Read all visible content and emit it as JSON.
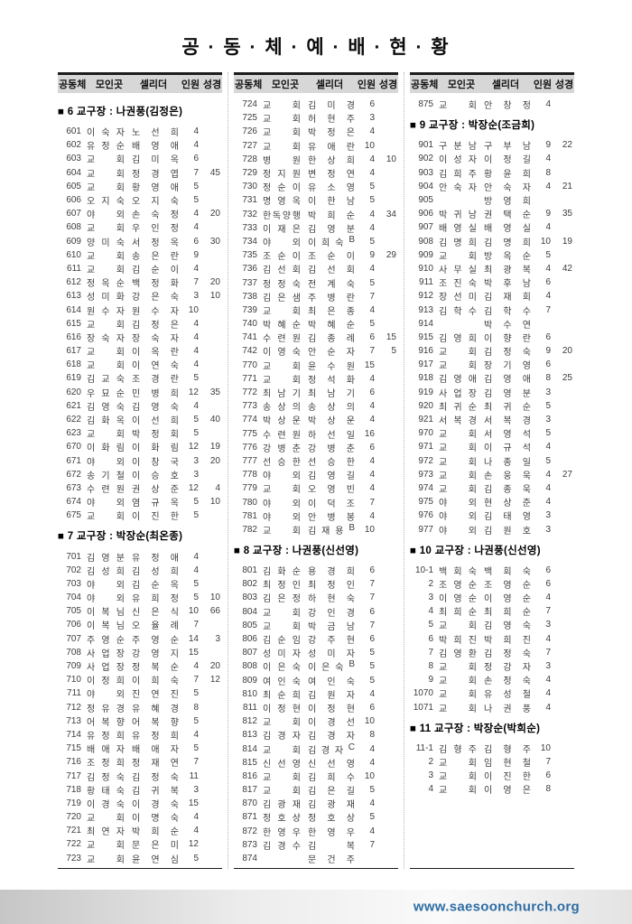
{
  "title": "공 · 동 · 체 · 예 · 배 · 현 · 황",
  "table_headers": [
    "공동체",
    "모인곳",
    "셀리더",
    "인원",
    "성경"
  ],
  "footer": {
    "url": "www.saesoonchurch.org",
    "url_color": "#2d6da3"
  },
  "columns": [
    {
      "items": [
        {
          "s": "■ 6 교구장 : 나권풍(김정은)"
        },
        [
          "601",
          "이숙자",
          "노선희",
          "4",
          ""
        ],
        [
          "602",
          "유정순",
          "배영애",
          "4",
          ""
        ],
        [
          "603",
          "교회",
          "김미옥",
          "6",
          ""
        ],
        [
          "604",
          "교회",
          "정경엽",
          "7",
          "45"
        ],
        [
          "605",
          "교회",
          "황영애",
          "5",
          ""
        ],
        [
          "606",
          "오지숙",
          "오지숙",
          "5",
          ""
        ],
        [
          "607",
          "야외",
          "손숙정",
          "4",
          "20"
        ],
        [
          "608",
          "교회",
          "우인정",
          "4",
          ""
        ],
        [
          "609",
          "양미숙",
          "서정옥",
          "6",
          "30"
        ],
        [
          "610",
          "교회",
          "송은란",
          "9",
          ""
        ],
        [
          "611",
          "교회",
          "김순이",
          "4",
          ""
        ],
        [
          "612",
          "정옥순",
          "백정화",
          "7",
          "20"
        ],
        [
          "613",
          "성미화",
          "강은숙",
          "3",
          "10"
        ],
        [
          "614",
          "원수자",
          "원수자",
          "10",
          ""
        ],
        [
          "615",
          "교회",
          "김정은",
          "4",
          ""
        ],
        [
          "616",
          "장숙자",
          "장숙자",
          "4",
          ""
        ],
        [
          "617",
          "교회",
          "이옥란",
          "4",
          ""
        ],
        [
          "618",
          "교회",
          "이연숙",
          "4",
          ""
        ],
        [
          "619",
          "김교숙",
          "조경란",
          "5",
          ""
        ],
        [
          "620",
          "우묘순",
          "민병희",
          "12",
          "35"
        ],
        [
          "621",
          "김영숙",
          "김영숙",
          "4",
          ""
        ],
        [
          "622",
          "김화옥",
          "이선희",
          "5",
          "40"
        ],
        [
          "623",
          "교회",
          "박정회",
          "5",
          ""
        ],
        [
          "670",
          "이화림",
          "이화림",
          "12",
          "19"
        ],
        [
          "671",
          "야외",
          "이창국",
          "3",
          "20"
        ],
        [
          "672",
          "송기철",
          "이승호",
          "3",
          ""
        ],
        [
          "673",
          "수련원",
          "권상준",
          "12",
          "4"
        ],
        [
          "674",
          "야외",
          "염규옥",
          "5",
          "10"
        ],
        [
          "675",
          "교회",
          "이진한",
          "5",
          ""
        ],
        {
          "s": "■ 7 교구장 : 박장순(최온종)"
        },
        [
          "701",
          "김영분",
          "유정애",
          "4",
          ""
        ],
        [
          "702",
          "김성희",
          "김성희",
          "4",
          ""
        ],
        [
          "703",
          "야외",
          "김순옥",
          "5",
          ""
        ],
        [
          "704",
          "야외",
          "유희정",
          "5",
          "10"
        ],
        [
          "705",
          "이복님",
          "신은식",
          "10",
          "66"
        ],
        [
          "706",
          "이복님",
          "오율례",
          "7",
          ""
        ],
        [
          "707",
          "주영순",
          "주영순",
          "14",
          "3"
        ],
        [
          "708",
          "사업장",
          "강영지",
          "15",
          ""
        ],
        [
          "709",
          "사업장",
          "정복순",
          "4",
          "20"
        ],
        [
          "710",
          "이정희",
          "이희숙",
          "7",
          "12"
        ],
        [
          "711",
          "야외",
          "진연진",
          "5",
          ""
        ],
        [
          "712",
          "정유경",
          "유혜경",
          "8",
          ""
        ],
        [
          "713",
          "어복향",
          "어복향",
          "5",
          ""
        ],
        [
          "714",
          "유정희",
          "유정희",
          "4",
          ""
        ],
        [
          "715",
          "배애자",
          "배애자",
          "5",
          ""
        ],
        [
          "716",
          "조정희",
          "정재연",
          "7",
          ""
        ],
        [
          "717",
          "김정숙",
          "김정숙",
          "11",
          ""
        ],
        [
          "718",
          "황태숙",
          "김귀복",
          "3",
          ""
        ],
        [
          "719",
          "이경숙",
          "이경숙",
          "15",
          ""
        ],
        [
          "720",
          "교회",
          "이명숙",
          "4",
          ""
        ],
        [
          "721",
          "최연자",
          "박희순",
          "4",
          ""
        ],
        [
          "722",
          "교회",
          "문은미",
          "12",
          ""
        ],
        [
          "723",
          "교회",
          "윤연심",
          "5",
          ""
        ]
      ]
    },
    {
      "items": [
        [
          "724",
          "교회",
          "김미경",
          "6",
          ""
        ],
        [
          "725",
          "교회",
          "허현주",
          "3",
          ""
        ],
        [
          "726",
          "교회",
          "박정은",
          "4",
          ""
        ],
        [
          "727",
          "교회",
          "유애란",
          "10",
          ""
        ],
        [
          "728",
          "병원",
          "한상희",
          "4",
          "10"
        ],
        [
          "729",
          "정지원",
          "변정연",
          "4",
          ""
        ],
        [
          "730",
          "정순이",
          "유소영",
          "5",
          ""
        ],
        [
          "731",
          "명영옥",
          "이한남",
          "5",
          ""
        ],
        [
          "732",
          "한독양행",
          "박희순",
          "4",
          "34"
        ],
        [
          "733",
          "이재은",
          "김영분",
          "4",
          ""
        ],
        [
          "734",
          "야외",
          "이희숙B",
          "5",
          ""
        ],
        [
          "735",
          "조순이",
          "조순이",
          "9",
          "29"
        ],
        [
          "736",
          "김선회",
          "김선회",
          "4",
          ""
        ],
        [
          "737",
          "정정숙",
          "전계숙",
          "5",
          ""
        ],
        [
          "738",
          "김은샘",
          "주병란",
          "7",
          ""
        ],
        [
          "739",
          "교회",
          "최은종",
          "4",
          ""
        ],
        [
          "740",
          "박혜순",
          "박혜순",
          "5",
          ""
        ],
        [
          "741",
          "수련원",
          "김종례",
          "6",
          "15"
        ],
        [
          "742",
          "이영숙",
          "안순자",
          "7",
          "5"
        ],
        [
          "770",
          "교회",
          "윤수원",
          "15",
          ""
        ],
        [
          "771",
          "교회",
          "정석화",
          "4",
          ""
        ],
        [
          "772",
          "최남기",
          "최남기",
          "6",
          ""
        ],
        [
          "773",
          "송상의",
          "송상의",
          "4",
          ""
        ],
        [
          "774",
          "박상운",
          "박상운",
          "4",
          ""
        ],
        [
          "775",
          "수련원",
          "하선일",
          "16",
          ""
        ],
        [
          "776",
          "강병춘",
          "강병춘",
          "6",
          ""
        ],
        [
          "777",
          "선승한",
          "선승한",
          "4",
          ""
        ],
        [
          "778",
          "야외",
          "김영길",
          "4",
          ""
        ],
        [
          "779",
          "교회",
          "오영빈",
          "4",
          ""
        ],
        [
          "780",
          "야외",
          "이덕조",
          "7",
          ""
        ],
        [
          "781",
          "야외",
          "안병봉",
          "4",
          ""
        ],
        [
          "782",
          "교회",
          "김재용B",
          "10",
          ""
        ],
        {
          "s": "■ 8 교구장 : 나권풍(신선영)"
        },
        [
          "801",
          "김화순",
          "용경희",
          "6",
          ""
        ],
        [
          "802",
          "최정인",
          "최정인",
          "7",
          ""
        ],
        [
          "803",
          "김은정",
          "하현숙",
          "7",
          ""
        ],
        [
          "804",
          "교회",
          "강인경",
          "6",
          ""
        ],
        [
          "805",
          "교회",
          "박금남",
          "7",
          ""
        ],
        [
          "806",
          "김순임",
          "강주현",
          "6",
          ""
        ],
        [
          "807",
          "성미자",
          "성미자",
          "5",
          ""
        ],
        [
          "808",
          "이은숙",
          "이은숙B",
          "5",
          ""
        ],
        [
          "809",
          "여인숙",
          "여인숙",
          "5",
          ""
        ],
        [
          "810",
          "최순희",
          "김원자",
          "4",
          ""
        ],
        [
          "811",
          "이정현",
          "이정현",
          "6",
          ""
        ],
        [
          "812",
          "교회",
          "이경선",
          "10",
          ""
        ],
        [
          "813",
          "김경자",
          "김경자",
          "8",
          ""
        ],
        [
          "814",
          "교회",
          "김경자C",
          "4",
          ""
        ],
        [
          "815",
          "신선영",
          "신선영",
          "4",
          ""
        ],
        [
          "816",
          "교회",
          "김희수",
          "10",
          ""
        ],
        [
          "817",
          "교회",
          "김은길",
          "5",
          ""
        ],
        [
          "870",
          "김광재",
          "김광재",
          "4",
          ""
        ],
        [
          "871",
          "정호상",
          "정호상",
          "5",
          ""
        ],
        [
          "872",
          "한영우",
          "한영우",
          "4",
          ""
        ],
        [
          "873",
          "김경수",
          "김복",
          "7",
          ""
        ],
        [
          "874",
          "",
          "문건주",
          "",
          ""
        ]
      ]
    },
    {
      "items": [
        [
          "875",
          "교회",
          "안창정",
          "4",
          ""
        ],
        {
          "s": "■ 9 교구장 : 박장순(조금희)"
        },
        [
          "901",
          "구분남",
          "구부남",
          "9",
          "22"
        ],
        [
          "902",
          "이성자",
          "이정길",
          "4",
          ""
        ],
        [
          "903",
          "김희주",
          "황윤희",
          "8",
          ""
        ],
        [
          "904",
          "안숙자",
          "안숙자",
          "4",
          "21"
        ],
        [
          "905",
          "",
          "방영희",
          "",
          ""
        ],
        [
          "906",
          "박귀남",
          "권택순",
          "9",
          "35"
        ],
        [
          "907",
          "배영실",
          "배영실",
          "4",
          ""
        ],
        [
          "908",
          "김명희",
          "김명희",
          "10",
          "19"
        ],
        [
          "909",
          "교회",
          "방옥순",
          "5",
          ""
        ],
        [
          "910",
          "사무실",
          "최광복",
          "4",
          "42"
        ],
        [
          "911",
          "조진숙",
          "박후남",
          "6",
          ""
        ],
        [
          "912",
          "장선미",
          "김재회",
          "4",
          ""
        ],
        [
          "913",
          "김학수",
          "김학수",
          "7",
          ""
        ],
        [
          "914",
          "",
          "박수연",
          "",
          ""
        ],
        [
          "915",
          "김영희",
          "이향란",
          "6",
          ""
        ],
        [
          "916",
          "교회",
          "김정숙",
          "9",
          "20"
        ],
        [
          "917",
          "교회",
          "장기영",
          "6",
          ""
        ],
        [
          "918",
          "김영애",
          "김영애",
          "8",
          "25"
        ],
        [
          "919",
          "사업장",
          "김영분",
          "3",
          ""
        ],
        [
          "920",
          "최귀순",
          "최귀순",
          "5",
          ""
        ],
        [
          "921",
          "서복경",
          "서복경",
          "3",
          ""
        ],
        [
          "970",
          "교회",
          "서영석",
          "5",
          ""
        ],
        [
          "971",
          "교회",
          "이규석",
          "4",
          ""
        ],
        [
          "972",
          "교회",
          "나종일",
          "5",
          ""
        ],
        [
          "973",
          "교회",
          "손웅욱",
          "4",
          "27"
        ],
        [
          "974",
          "교회",
          "김종욱",
          "4",
          ""
        ],
        [
          "975",
          "야외",
          "현상준",
          "4",
          ""
        ],
        [
          "976",
          "야외",
          "김태영",
          "3",
          ""
        ],
        [
          "977",
          "야외",
          "김원호",
          "3",
          ""
        ],
        {
          "s": "■ 10 교구장 : 나권풍(신선영)"
        },
        [
          "10-1",
          "백회숙",
          "백회숙",
          "6",
          ""
        ],
        [
          "2",
          "조영순",
          "조영순",
          "6",
          ""
        ],
        [
          "3",
          "이영순",
          "이영순",
          "4",
          ""
        ],
        [
          "4",
          "최희순",
          "최희순",
          "7",
          ""
        ],
        [
          "5",
          "교회",
          "김영숙",
          "3",
          ""
        ],
        [
          "6",
          "박희진",
          "박희진",
          "4",
          ""
        ],
        [
          "7",
          "김영환",
          "김정숙",
          "7",
          ""
        ],
        [
          "8",
          "교회",
          "정강자",
          "3",
          ""
        ],
        [
          "9",
          "교회",
          "손정숙",
          "4",
          ""
        ],
        [
          "1070",
          "교회",
          "유성철",
          "4",
          ""
        ],
        [
          "1071",
          "교회",
          "나권풍",
          "4",
          ""
        ],
        {
          "s": "■ 11 교구장 : 박장순(박희순)"
        },
        [
          "11-1",
          "김형주",
          "김형주",
          "10",
          ""
        ],
        [
          "2",
          "교회",
          "임현철",
          "7",
          ""
        ],
        [
          "3",
          "교회",
          "이진한",
          "6",
          ""
        ],
        [
          "4",
          "교회",
          "이영은",
          "8",
          ""
        ]
      ]
    }
  ]
}
